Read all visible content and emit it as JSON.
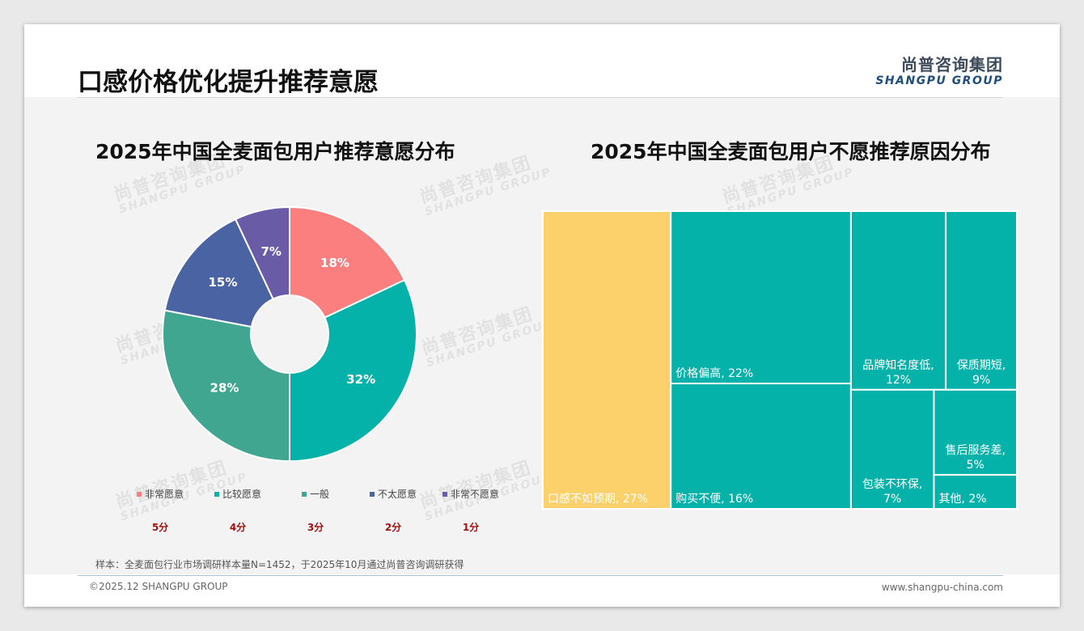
{
  "header": {
    "title": "口感价格优化提升推荐意愿",
    "logo_cn": "尚普咨询集团",
    "logo_en": "SHANGPU GROUP"
  },
  "watermark": {
    "cn": "尚普咨询集团",
    "en": "SHANGPU GROUP"
  },
  "chart_data": [
    {
      "type": "pie",
      "title": "2025年中国全麦面包用户推荐意愿分布",
      "donut": true,
      "legend_position": "bottom",
      "categories": [
        "非常愿意",
        "比较愿意",
        "一般",
        "不太愿意",
        "非常不愿意"
      ],
      "values": [
        18,
        32,
        28,
        15,
        7
      ],
      "labels": [
        "18%",
        "32%",
        "28%",
        "15%",
        "7%"
      ],
      "scores": [
        "5分",
        "4分",
        "3分",
        "2分",
        "1分"
      ],
      "colors": [
        "#fc7f7f",
        "#04b2aa",
        "#41a690",
        "#4a63a2",
        "#6a5ba7"
      ]
    },
    {
      "type": "treemap",
      "title": "2025年中国全麦面包用户不愿推荐原因分布",
      "categories": [
        "口感不如预期",
        "价格偏高",
        "购买不便",
        "品牌知名度低",
        "保质期短",
        "包装不环保",
        "售后服务差",
        "其他"
      ],
      "values": [
        27,
        22,
        16,
        12,
        9,
        7,
        5,
        2
      ],
      "labels": [
        "口感不如预期, 27%",
        "价格偏高, 22%",
        "购买不便, 16%",
        "品牌知名度低,|12%",
        "保质期短,|9%",
        "包装不环保,|7%",
        "售后服务差,|5%",
        "其他, 2%"
      ],
      "colors": [
        "#fcd06a",
        "#04b2aa",
        "#04b2aa",
        "#04b2aa",
        "#04b2aa",
        "#04b2aa",
        "#04b2aa",
        "#04b2aa"
      ]
    }
  ],
  "footer": {
    "sample_note": "样本：全麦面包行业市场调研样本量N=1452，于2025年10月通过尚普咨询调研获得",
    "copyright": "©2025.12 SHANGPU GROUP",
    "website": "www.shangpu-china.com"
  }
}
